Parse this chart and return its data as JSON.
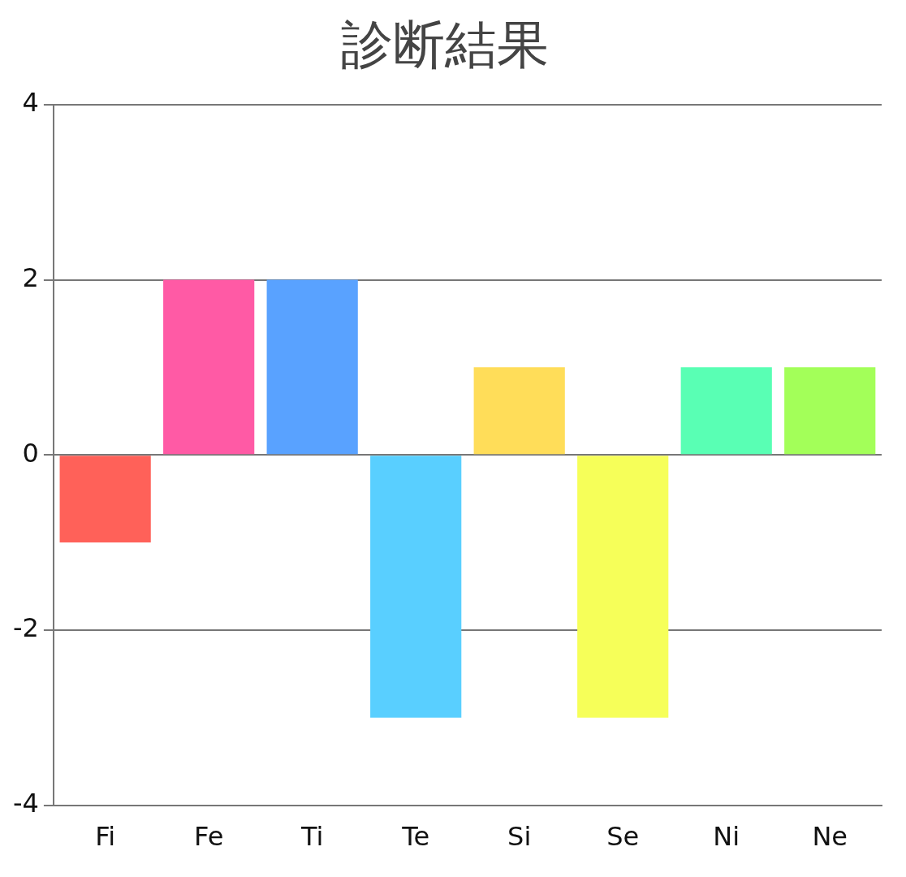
{
  "chart_data": {
    "type": "bar",
    "title": "診断結果",
    "categories": [
      "Fi",
      "Fe",
      "Ti",
      "Te",
      "Si",
      "Se",
      "Ni",
      "Ne"
    ],
    "values": [
      -1,
      2,
      2,
      -3,
      1,
      -3,
      1,
      1
    ],
    "colors": [
      "#ff6159",
      "#ff5aa5",
      "#59a2ff",
      "#59cfff",
      "#ffdd59",
      "#f6ff59",
      "#59ffb4",
      "#a3ff59"
    ],
    "ylim": [
      -4,
      4
    ],
    "yticks": [
      -4,
      -2,
      0,
      2,
      4
    ],
    "grid": "y"
  }
}
